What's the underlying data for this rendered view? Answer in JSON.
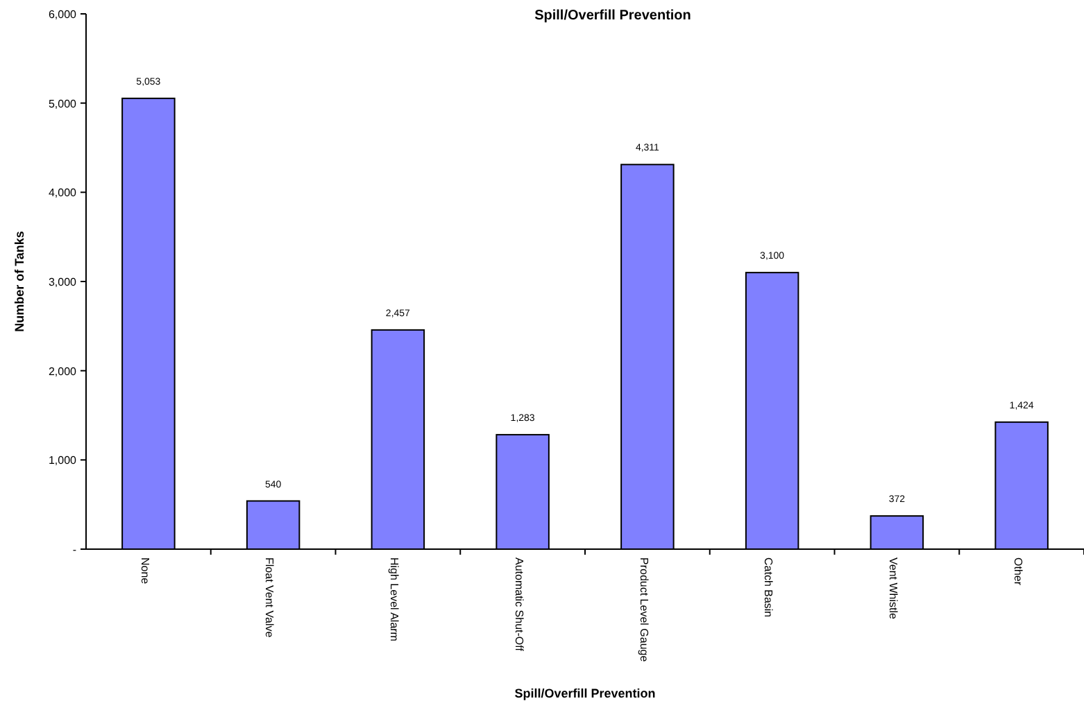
{
  "chart_data": {
    "type": "bar",
    "title": "Spill/Overfill Prevention",
    "xlabel": "Spill/Overfill Prevention",
    "ylabel": "Number of Tanks",
    "categories": [
      "None",
      "Float Vent Valve",
      "High Level Alarm",
      "Automatic Shut-Off",
      "Product Level Gauge",
      "Catch Basin",
      "Vent Whistle",
      "Other"
    ],
    "values": [
      5053,
      540,
      2457,
      1283,
      4311,
      3100,
      372,
      1424
    ],
    "value_labels": [
      "5,053",
      "540",
      "2,457",
      "1,283",
      "4,311",
      "3,100",
      "372",
      "1,424"
    ],
    "color": "#8080ff",
    "ylim": [
      0,
      6000
    ],
    "yticks": [
      {
        "value": 0,
        "label": "-"
      },
      {
        "value": 1000,
        "label": "1,000"
      },
      {
        "value": 2000,
        "label": "2,000"
      },
      {
        "value": 3000,
        "label": "3,000"
      },
      {
        "value": 4000,
        "label": "4,000"
      },
      {
        "value": 5000,
        "label": "5,000"
      },
      {
        "value": 6000,
        "label": "6,000"
      }
    ],
    "grid": false
  }
}
